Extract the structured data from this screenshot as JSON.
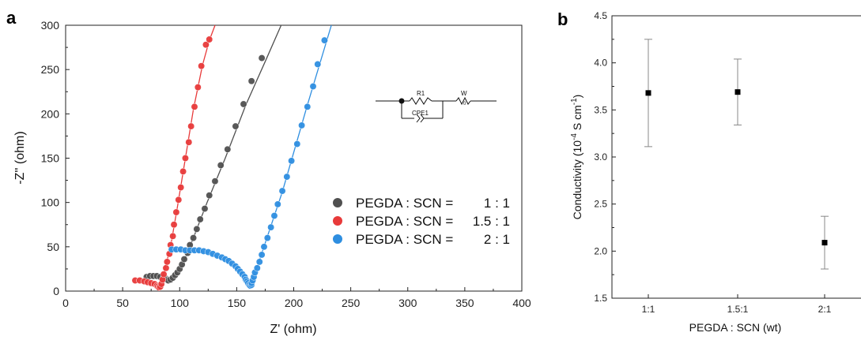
{
  "chart_data": [
    {
      "panel": "a",
      "type": "scatter",
      "xlabel": "Z' (ohm)",
      "ylabel": "-Z'' (ohm)",
      "xlim": [
        0,
        400
      ],
      "ylim": [
        0,
        300
      ],
      "xticks": [
        0,
        50,
        100,
        150,
        200,
        250,
        300,
        350,
        400
      ],
      "yticks": [
        0,
        50,
        100,
        150,
        200,
        250,
        300
      ],
      "grid": false,
      "legend": "middle-right",
      "legend_names": [
        "PEGDA : SCN =",
        "PEGDA : SCN =",
        "PEGDA : SCN ="
      ],
      "legend_ratios": [
        "1 : 1",
        "1.5 : 1",
        "2 : 1"
      ],
      "circuit": {
        "r": "R1",
        "cpe": "CPE1",
        "w": "W",
        "w_sub": "0"
      },
      "series": [
        {
          "color": "#505050",
          "points": [
            [
              71,
              16
            ],
            [
              74,
              17
            ],
            [
              77,
              17
            ],
            [
              80,
              17
            ],
            [
              83,
              16
            ],
            [
              86,
              15
            ],
            [
              88,
              14
            ],
            [
              89,
              13
            ],
            [
              90,
              12
            ],
            [
              92,
              13
            ],
            [
              94,
              15
            ],
            [
              96,
              18
            ],
            [
              98,
              21
            ],
            [
              100,
              25
            ],
            [
              102,
              30
            ],
            [
              104,
              36
            ],
            [
              107,
              43
            ],
            [
              109,
              52
            ],
            [
              112,
              60
            ],
            [
              115,
              70
            ],
            [
              118,
              81
            ],
            [
              122,
              93
            ],
            [
              126,
              108
            ],
            [
              131,
              124
            ],
            [
              136,
              142
            ],
            [
              142,
              160
            ],
            [
              149,
              186
            ],
            [
              156,
              211
            ],
            [
              163,
              237
            ],
            [
              172,
              263
            ]
          ],
          "line": [
            [
              88,
              12
            ],
            [
              102,
              28
            ],
            [
              112,
              60
            ],
            [
              124,
              100
            ],
            [
              140,
              150
            ],
            [
              158,
              210
            ],
            [
              176,
              262
            ],
            [
              189,
              300
            ]
          ]
        },
        {
          "color": "#e83a3a",
          "points": [
            [
              61,
              12
            ],
            [
              65,
              12
            ],
            [
              69,
              11
            ],
            [
              72,
              10
            ],
            [
              75,
              9
            ],
            [
              78,
              8
            ],
            [
              80,
              6
            ],
            [
              81,
              5
            ],
            [
              82,
              4
            ],
            [
              83,
              5
            ],
            [
              84,
              8
            ],
            [
              85,
              13
            ],
            [
              86,
              19
            ],
            [
              88,
              26
            ],
            [
              89,
              33
            ],
            [
              91,
              42
            ],
            [
              92,
              52
            ],
            [
              94,
              62
            ],
            [
              95,
              75
            ],
            [
              97,
              89
            ],
            [
              99,
              103
            ],
            [
              101,
              117
            ],
            [
              103,
              135
            ],
            [
              105,
              150
            ],
            [
              108,
              168
            ],
            [
              110,
              186
            ],
            [
              113,
              208
            ],
            [
              116,
              230
            ],
            [
              119,
              254
            ],
            [
              123,
              278
            ],
            [
              126,
              284
            ]
          ],
          "line": [
            [
              80,
              4
            ],
            [
              86,
              20
            ],
            [
              92,
              50
            ],
            [
              98,
              95
            ],
            [
              105,
              150
            ],
            [
              112,
              205
            ],
            [
              120,
              255
            ],
            [
              126,
              283
            ],
            [
              131,
              300
            ]
          ]
        },
        {
          "color": "#2e8ee0",
          "points": [
            [
              93,
              47
            ],
            [
              97,
              47
            ],
            [
              101,
              47
            ],
            [
              105,
              46
            ],
            [
              109,
              46
            ],
            [
              113,
              46
            ],
            [
              117,
              46
            ],
            [
              121,
              45
            ],
            [
              125,
              44
            ],
            [
              129,
              42
            ],
            [
              133,
              40
            ],
            [
              137,
              38
            ],
            [
              140,
              36
            ],
            [
              143,
              34
            ],
            [
              146,
              31
            ],
            [
              149,
              28
            ],
            [
              151,
              25
            ],
            [
              153,
              22
            ],
            [
              155,
              19
            ],
            [
              157,
              16
            ],
            [
              158,
              13
            ],
            [
              159,
              11
            ],
            [
              160,
              9
            ],
            [
              161,
              7
            ],
            [
              162,
              6
            ],
            [
              163,
              7
            ],
            [
              163,
              9
            ],
            [
              164,
              12
            ],
            [
              165,
              16
            ],
            [
              166,
              21
            ],
            [
              168,
              26
            ],
            [
              170,
              33
            ],
            [
              172,
              41
            ],
            [
              174,
              50
            ],
            [
              177,
              60
            ],
            [
              180,
              72
            ],
            [
              183,
              85
            ],
            [
              186,
              98
            ],
            [
              190,
              113
            ],
            [
              194,
              129
            ],
            [
              198,
              147
            ],
            [
              203,
              166
            ],
            [
              207,
              187
            ],
            [
              212,
              208
            ],
            [
              217,
              231
            ],
            [
              221,
              256
            ],
            [
              227,
              283
            ]
          ],
          "line": [
            [
              90,
              47
            ],
            [
              125,
              44
            ],
            [
              150,
              27
            ],
            [
              162,
              7
            ],
            [
              170,
              35
            ],
            [
              190,
              112
            ],
            [
              212,
              210
            ],
            [
              233,
              300
            ]
          ]
        }
      ]
    },
    {
      "panel": "b",
      "type": "scatter",
      "xlabel": "PEGDA : SCN (wt)",
      "ylabel_prefix": "Conductivity (10",
      "ylabel_exp": "-4",
      "ylabel_mid": " S cm",
      "ylabel_exp2": "-1",
      "ylabel_suffix": ")",
      "categories": [
        "1:1",
        "1.5:1",
        "2:1"
      ],
      "values": [
        3.68,
        3.69,
        2.09
      ],
      "errors": [
        0.57,
        0.35,
        0.28
      ],
      "ylim": [
        1.5,
        4.5
      ],
      "yticks": [
        "1.5",
        "2.0",
        "2.5",
        "3.0",
        "3.5",
        "4.0",
        "4.5"
      ],
      "grid": false
    }
  ]
}
